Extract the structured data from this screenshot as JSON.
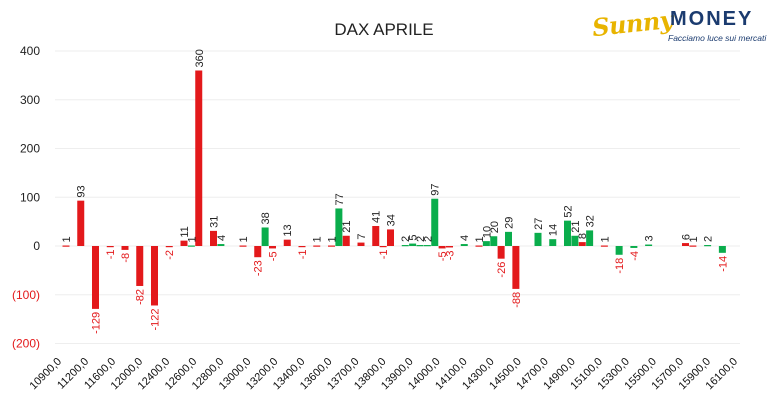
{
  "logo": {
    "brand_part1": "Sunny",
    "brand_part2": "MONEY",
    "tagline": "Facciamo luce sui mercati"
  },
  "colors": {
    "negative": "#e3191b",
    "positive": "#0aad4c",
    "grid": "#eeeeee",
    "axis_text": "#222222"
  },
  "chart_data": {
    "type": "bar",
    "title": "DAX APRILE",
    "xlabel": "",
    "ylabel": "",
    "ylim": [
      -200,
      400
    ],
    "yticks": [
      400,
      300,
      200,
      100,
      0,
      -100,
      -200
    ],
    "ytick_labels": [
      "400",
      "300",
      "200",
      "100",
      "0",
      "(100)",
      "(200)"
    ],
    "grid": true,
    "legend": "none",
    "x_tick_labels": [
      "10900,0",
      "11200,0",
      "11600,0",
      "12000,0",
      "12400,0",
      "12600,0",
      "12800,0",
      "13000,0",
      "13200,0",
      "13400,0",
      "13600,0",
      "13700,0",
      "13800,0",
      "13900,0",
      "14000,0",
      "14100,0",
      "14300,0",
      "14500,0",
      "14700,0",
      "14900,0",
      "15100,0",
      "15300,0",
      "15500,0",
      "15700,0",
      "15900,0",
      "16100,0"
    ],
    "bars": [
      {
        "slot": 0,
        "value": 1,
        "color": "red"
      },
      {
        "slot": 1,
        "value": 93,
        "color": "red"
      },
      {
        "slot": 2,
        "value": -129,
        "color": "red"
      },
      {
        "slot": 3,
        "value": -1,
        "color": "red"
      },
      {
        "slot": 4,
        "value": -8,
        "color": "red"
      },
      {
        "slot": 5,
        "value": -82,
        "color": "red"
      },
      {
        "slot": 6,
        "value": -122,
        "color": "red"
      },
      {
        "slot": 7,
        "value": -2,
        "color": "red"
      },
      {
        "slot": 8,
        "value": 11,
        "color": "red"
      },
      {
        "slot": 8.5,
        "value": 1,
        "color": "green"
      },
      {
        "slot": 9,
        "value": 360,
        "color": "red"
      },
      {
        "slot": 10,
        "value": 31,
        "color": "red"
      },
      {
        "slot": 10.5,
        "value": 4,
        "color": "green"
      },
      {
        "slot": 12,
        "value": 1,
        "color": "red"
      },
      {
        "slot": 13,
        "value": -23,
        "color": "red"
      },
      {
        "slot": 13.5,
        "value": 38,
        "color": "green"
      },
      {
        "slot": 14,
        "value": -5,
        "color": "red"
      },
      {
        "slot": 15,
        "value": 13,
        "color": "red"
      },
      {
        "slot": 16,
        "value": -1,
        "color": "red"
      },
      {
        "slot": 17,
        "value": 1,
        "color": "red"
      },
      {
        "slot": 18,
        "value": 1,
        "color": "red"
      },
      {
        "slot": 18.5,
        "value": 77,
        "color": "green"
      },
      {
        "slot": 19,
        "value": 21,
        "color": "red"
      },
      {
        "slot": 20,
        "value": 7,
        "color": "red"
      },
      {
        "slot": 21,
        "value": 41,
        "color": "red"
      },
      {
        "slot": 21.5,
        "value": -1,
        "color": "red"
      },
      {
        "slot": 22,
        "value": 34,
        "color": "red"
      },
      {
        "slot": 23,
        "value": 2,
        "color": "green"
      },
      {
        "slot": 23.5,
        "value": 5,
        "color": "green"
      },
      {
        "slot": 24,
        "value": 2,
        "color": "green"
      },
      {
        "slot": 24.5,
        "value": 2,
        "color": "green"
      },
      {
        "slot": 25,
        "value": 97,
        "color": "green"
      },
      {
        "slot": 25.5,
        "value": -5,
        "color": "red"
      },
      {
        "slot": 26,
        "value": -3,
        "color": "red"
      },
      {
        "slot": 27,
        "value": 4,
        "color": "green"
      },
      {
        "slot": 28,
        "value": 1,
        "color": "red"
      },
      {
        "slot": 28.5,
        "value": 10,
        "color": "green"
      },
      {
        "slot": 29,
        "value": 20,
        "color": "green"
      },
      {
        "slot": 29.5,
        "value": -26,
        "color": "red"
      },
      {
        "slot": 30,
        "value": 29,
        "color": "green"
      },
      {
        "slot": 30.5,
        "value": -88,
        "color": "red"
      },
      {
        "slot": 32,
        "value": 27,
        "color": "green"
      },
      {
        "slot": 33,
        "value": 14,
        "color": "green"
      },
      {
        "slot": 34,
        "value": 52,
        "color": "green"
      },
      {
        "slot": 34.5,
        "value": 21,
        "color": "green"
      },
      {
        "slot": 35,
        "value": 8,
        "color": "red"
      },
      {
        "slot": 35.5,
        "value": 32,
        "color": "green"
      },
      {
        "slot": 36.5,
        "value": 1,
        "color": "red"
      },
      {
        "slot": 37.5,
        "value": -18,
        "color": "green"
      },
      {
        "slot": 38.5,
        "value": -4,
        "color": "green"
      },
      {
        "slot": 39.5,
        "value": 3,
        "color": "green"
      },
      {
        "slot": 42,
        "value": 6,
        "color": "red"
      },
      {
        "slot": 42.5,
        "value": 1,
        "color": "red"
      },
      {
        "slot": 43.5,
        "value": 2,
        "color": "green"
      },
      {
        "slot": 44.5,
        "value": -14,
        "color": "green"
      }
    ]
  }
}
